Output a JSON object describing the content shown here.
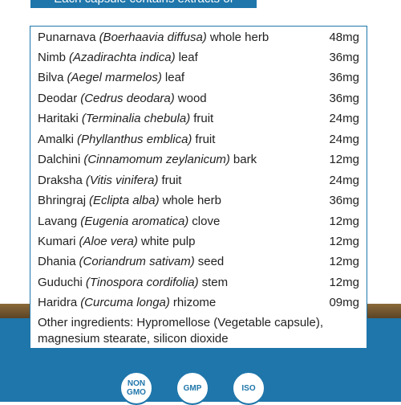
{
  "header": {
    "title": "Each capsule contains extracts of"
  },
  "ingredients": [
    {
      "name": "Punarnava",
      "latin": "(Boerhaavia diffusa)",
      "part": "whole herb",
      "amount": "48mg"
    },
    {
      "name": "Nimb",
      "latin": "(Azadirachta indica)",
      "part": "leaf",
      "amount": "36mg"
    },
    {
      "name": "Bilva",
      "latin": "(Aegel marmelos)",
      "part": "leaf",
      "amount": "36mg"
    },
    {
      "name": "Deodar",
      "latin": "(Cedrus deodara)",
      "part": "wood",
      "amount": "36mg"
    },
    {
      "name": "Haritaki",
      "latin": "(Terminalia chebula)",
      "part": "fruit",
      "amount": "24mg"
    },
    {
      "name": "Amalki",
      "latin": "(Phyllanthus emblica)",
      "part": "fruit",
      "amount": "24mg"
    },
    {
      "name": "Dalchini",
      "latin": "(Cinnamomum zeylanicum)",
      "part": "bark",
      "amount": "12mg"
    },
    {
      "name": "Draksha",
      "latin": "(Vitis vinifera)",
      "part": "fruit",
      "amount": "24mg"
    },
    {
      "name": "Bhringraj",
      "latin": "(Eclipta alba)",
      "part": "whole herb",
      "amount": "36mg"
    },
    {
      "name": "Lavang",
      "latin": "(Eugenia aromatica)",
      "part": "clove",
      "amount": "12mg"
    },
    {
      "name": "Kumari",
      "latin": "(Aloe vera)",
      "part": "white pulp",
      "amount": "12mg"
    },
    {
      "name": "Dhania",
      "latin": "(Coriandrum sativam)",
      "part": "seed",
      "amount": "12mg"
    },
    {
      "name": "Guduchi",
      "latin": "(Tinospora cordifolia)",
      "part": "stem",
      "amount": "12mg"
    },
    {
      "name": "Haridra",
      "latin": "(Curcuma longa)",
      "part": "rhizome",
      "amount": "09mg"
    }
  ],
  "other_ingredients": [
    "Other ingredients: Hypromellose (Vegetable capsule),",
    "magnesium stearate, silicon dioxide"
  ],
  "badges": [
    {
      "top": "NON",
      "bottom": "GMO"
    },
    {
      "top": "GMP"
    },
    {
      "top": "ISO"
    }
  ]
}
